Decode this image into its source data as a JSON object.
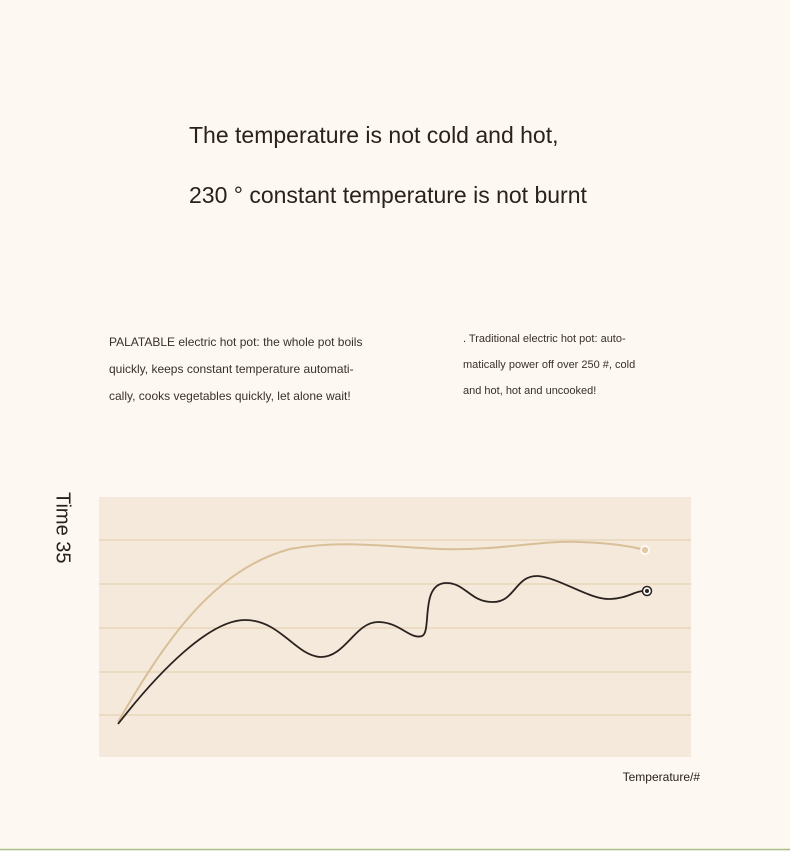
{
  "heading": {
    "line1": "The temperature is not cold and hot,",
    "line2": "230 ° constant temperature is not burnt"
  },
  "left_text": [
    "PALATABLE electric hot pot: the whole pot boils",
    "quickly, keeps constant temperature automati-",
    "cally, cooks vegetables quickly, let alone wait!"
  ],
  "right_text": [
    ". Traditional electric hot pot: auto-",
    "matically power off over 250 #, cold",
    "and hot, hot and uncooked!"
  ],
  "chart": {
    "y_label": "Time 35",
    "x_label": "Temperature/#"
  }
}
